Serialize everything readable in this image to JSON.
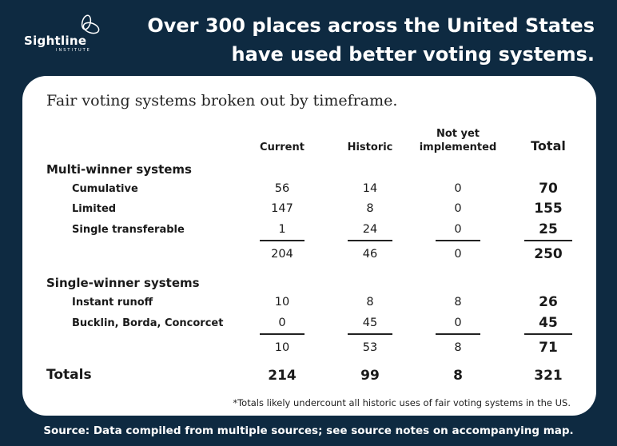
{
  "brand": {
    "name": "Sightline",
    "sub": "INSTITUTE"
  },
  "headline": "Over 300 places across the United States have used better voting systems.",
  "card": {
    "title": "Fair voting systems broken out by timeframe.",
    "columns": [
      "Current",
      "Historic",
      "Not yet implemented",
      "Total"
    ],
    "groups": [
      {
        "label": "Multi-winner systems",
        "rows": [
          {
            "label": "Cumulative",
            "values": [
              "56",
              "14",
              "0",
              "70"
            ]
          },
          {
            "label": "Limited",
            "values": [
              "147",
              "8",
              "0",
              "155"
            ]
          },
          {
            "label": "Single transferable",
            "values": [
              "1",
              "24",
              "0",
              "25"
            ]
          }
        ],
        "subtotal": [
          "204",
          "46",
          "0",
          "250"
        ]
      },
      {
        "label": "Single-winner systems",
        "rows": [
          {
            "label": "Instant runoff",
            "values": [
              "10",
              "8",
              "8",
              "26"
            ]
          },
          {
            "label": "Bucklin, Borda, Concorcet",
            "values": [
              "0",
              "45",
              "0",
              "45"
            ]
          }
        ],
        "subtotal": [
          "10",
          "53",
          "8",
          "71"
        ]
      }
    ],
    "totals": {
      "label": "Totals",
      "values": [
        "214",
        "99",
        "8",
        "321"
      ]
    },
    "footnote": "*Totals likely undercount all historic uses of fair voting systems in the US."
  },
  "source": "Source: Data compiled from multiple sources; see source notes on accompanying map.",
  "colors": {
    "background": "#0e2a41",
    "card": "#ffffff"
  }
}
